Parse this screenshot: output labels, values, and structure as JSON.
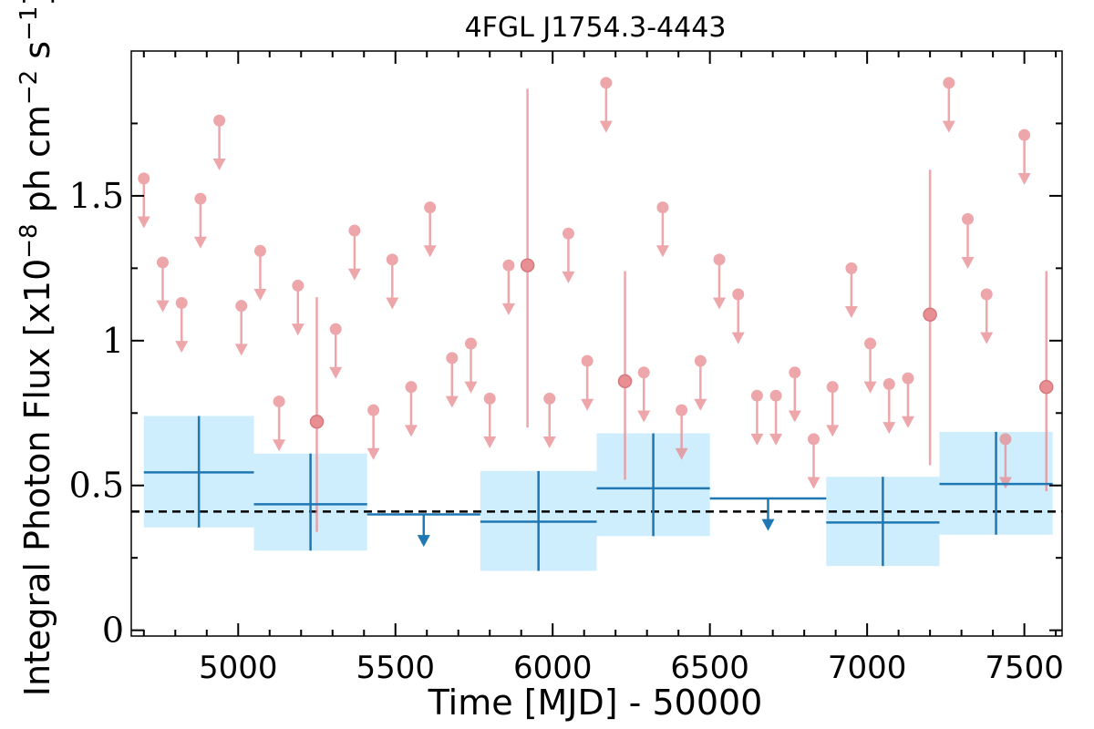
{
  "chart_data": {
    "type": "scatter",
    "title": "4FGL J1754.3-4443",
    "xlabel": "Time [MJD] - 50000",
    "ylabel": "Integral Photon Flux [x10",
    "ylabel_exp": "−8",
    "ylabel_mid": " ph cm",
    "ylabel_exp2": "−2",
    "ylabel_mid2": " s",
    "ylabel_exp3": "−1",
    "ylabel_end": "]",
    "xlim": [
      4660,
      7620
    ],
    "ylim": [
      -0.02,
      2.0
    ],
    "x_ticks": [
      5000,
      5500,
      6000,
      6500,
      7000,
      7500
    ],
    "x_tick_labels": [
      "5000",
      "5500",
      "6000",
      "6500",
      "7000",
      "7500"
    ],
    "y_ticks": [
      0,
      0.5,
      1,
      1.5
    ],
    "y_tick_labels": [
      "0",
      "0.5",
      "1",
      "1.5"
    ],
    "reference_line": {
      "y": 0.41,
      "style": "dashed",
      "color": "#000000"
    },
    "colors": {
      "short_bins": "#e88a8f",
      "long_bins": "#1f77b4",
      "long_bin_band": "#cfeefd"
    },
    "short_bin_upper_limits": [
      [
        4700,
        1.56
      ],
      [
        4760,
        1.27
      ],
      [
        4820,
        1.13
      ],
      [
        4880,
        1.49
      ],
      [
        4940,
        1.76
      ],
      [
        5010,
        1.12
      ],
      [
        5070,
        1.31
      ],
      [
        5130,
        0.79
      ],
      [
        5190,
        1.19
      ],
      [
        5310,
        1.04
      ],
      [
        5370,
        1.38
      ],
      [
        5430,
        0.76
      ],
      [
        5490,
        1.28
      ],
      [
        5550,
        0.84
      ],
      [
        5610,
        1.46
      ],
      [
        5680,
        0.94
      ],
      [
        5740,
        0.99
      ],
      [
        5800,
        0.8
      ],
      [
        5860,
        1.26
      ],
      [
        5990,
        0.8
      ],
      [
        6050,
        1.37
      ],
      [
        6110,
        0.93
      ],
      [
        6170,
        1.89
      ],
      [
        6290,
        0.89
      ],
      [
        6350,
        1.46
      ],
      [
        6410,
        0.76
      ],
      [
        6470,
        0.93
      ],
      [
        6530,
        1.28
      ],
      [
        6590,
        1.16
      ],
      [
        6650,
        0.81
      ],
      [
        6710,
        0.81
      ],
      [
        6770,
        0.89
      ],
      [
        6830,
        0.66
      ],
      [
        6890,
        0.84
      ],
      [
        6950,
        1.25
      ],
      [
        7010,
        0.99
      ],
      [
        7070,
        0.85
      ],
      [
        7130,
        0.87
      ],
      [
        7260,
        1.89
      ],
      [
        7320,
        1.42
      ],
      [
        7380,
        1.16
      ],
      [
        7440,
        0.66
      ],
      [
        7500,
        1.71
      ]
    ],
    "short_bin_detections": [
      {
        "x": 5250,
        "y": 0.72,
        "ylow": 0.34,
        "yhigh": 1.15
      },
      {
        "x": 5920,
        "y": 1.26,
        "ylow": 0.7,
        "yhigh": 1.87
      },
      {
        "x": 6230,
        "y": 0.86,
        "ylow": 0.52,
        "yhigh": 1.24
      },
      {
        "x": 7200,
        "y": 1.09,
        "ylow": 0.57,
        "yhigh": 1.59
      },
      {
        "x": 7570,
        "y": 0.84,
        "ylow": 0.48,
        "yhigh": 1.24
      }
    ],
    "long_bin_detections": [
      {
        "x0": 4700,
        "x1": 5050,
        "y": 0.545,
        "ylow": 0.355,
        "yhigh": 0.74
      },
      {
        "x0": 5050,
        "x1": 5410,
        "y": 0.435,
        "ylow": 0.275,
        "yhigh": 0.61
      },
      {
        "x0": 5770,
        "x1": 6140,
        "y": 0.375,
        "ylow": 0.205,
        "yhigh": 0.55
      },
      {
        "x0": 6140,
        "x1": 6500,
        "y": 0.49,
        "ylow": 0.325,
        "yhigh": 0.68
      },
      {
        "x0": 6870,
        "x1": 7230,
        "y": 0.372,
        "ylow": 0.222,
        "yhigh": 0.53
      },
      {
        "x0": 7230,
        "x1": 7590,
        "y": 0.505,
        "ylow": 0.33,
        "yhigh": 0.685
      }
    ],
    "long_bin_upper_limits": [
      {
        "x0": 5410,
        "x1": 5770,
        "y": 0.4
      },
      {
        "x0": 6500,
        "x1": 6870,
        "y": 0.455
      }
    ]
  }
}
